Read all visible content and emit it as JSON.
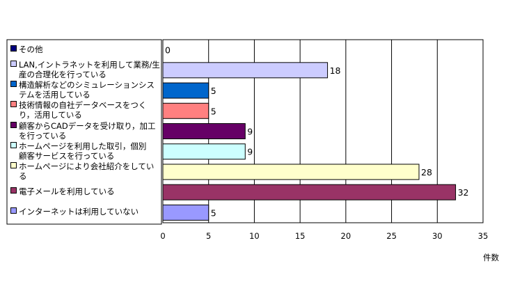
{
  "chart_data": {
    "type": "bar",
    "orientation": "horizontal",
    "categories": [
      "その他",
      "LAN,イントラネットを利用して業務/生産の合理化を行っている",
      "構造解析などのシミュレーションシステムを活用している",
      "技術情報の自社データベースをつくり，活用している",
      "顧客からCADデータを受け取り，加工を行っている",
      "ホームページを利用した取引，個別顧客サービスを行っている",
      "ホームページにより会社紹介をしている",
      "電子メールを利用している",
      "インターネットは利用していない"
    ],
    "category_lines": [
      [
        "その他"
      ],
      [
        "LAN,イントラネットを利用して業務/生",
        "産の合理化を行っている"
      ],
      [
        "構造解析などのシミュレーションシス",
        "テムを活用している"
      ],
      [
        "技術情報の自社データベースをつく",
        "り，活用している"
      ],
      [
        "顧客からCADデータを受け取り，加工",
        "を行っている"
      ],
      [
        "ホームページを利用した取引，個別",
        "顧客サービスを行っている"
      ],
      [
        "ホームページにより会社紹介をしてい",
        "る"
      ],
      [
        "電子メールを利用している"
      ],
      [
        "インターネットは利用していない"
      ]
    ],
    "values": [
      0,
      18,
      5,
      5,
      9,
      9,
      28,
      32,
      5
    ],
    "colors": [
      "#000080",
      "#CCCCFF",
      "#0066CC",
      "#FF8080",
      "#660066",
      "#CCFFFF",
      "#FFFFCC",
      "#993366",
      "#9999FF"
    ],
    "xlim": [
      0,
      35
    ],
    "xticks": [
      0,
      5,
      10,
      15,
      20,
      25,
      30,
      35
    ],
    "xlabel": "件数",
    "grid": true,
    "legend": "left"
  }
}
